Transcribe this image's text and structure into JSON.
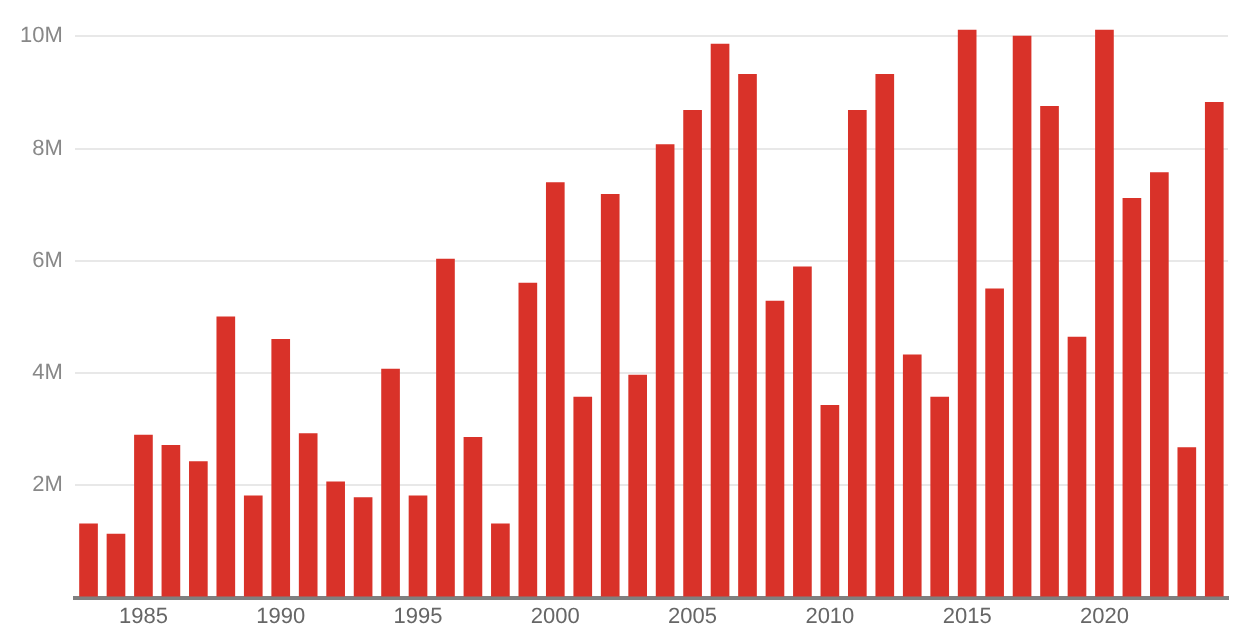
{
  "chart_data": {
    "type": "bar",
    "categories": [
      null,
      null,
      "1985",
      null,
      null,
      null,
      null,
      "1990",
      null,
      null,
      null,
      null,
      "1995",
      null,
      null,
      null,
      null,
      "2000",
      null,
      null,
      null,
      null,
      "2005",
      null,
      null,
      null,
      null,
      "2010",
      null,
      null,
      null,
      null,
      "2015",
      null,
      null,
      null,
      null,
      "2020",
      null,
      null,
      null,
      null
    ],
    "values": [
      1320000,
      1140000,
      2900000,
      2720000,
      2430000,
      5010000,
      1820000,
      4610000,
      2930000,
      2070000,
      1790000,
      4080000,
      1820000,
      6040000,
      2860000,
      1320000,
      5610000,
      7400000,
      3580000,
      7190000,
      3970000,
      8080000,
      8690000,
      9870000,
      9330000,
      5290000,
      5900000,
      3430000,
      8690000,
      9330000,
      4330000,
      3580000,
      10120000,
      5510000,
      10010000,
      8760000,
      4650000,
      10120000,
      7120000,
      7580000,
      2680000,
      8830000
    ],
    "color": "#d93229",
    "ylim": [
      0,
      10200000
    ],
    "yticks": [
      {
        "value": 0,
        "label": null
      },
      {
        "value": 2000000,
        "label": "2M"
      },
      {
        "value": 4000000,
        "label": "4M"
      },
      {
        "value": 6000000,
        "label": "6M"
      },
      {
        "value": 8000000,
        "label": "8M"
      },
      {
        "value": 10000000,
        "label": "10M"
      }
    ],
    "grid": "y",
    "legend": false
  }
}
